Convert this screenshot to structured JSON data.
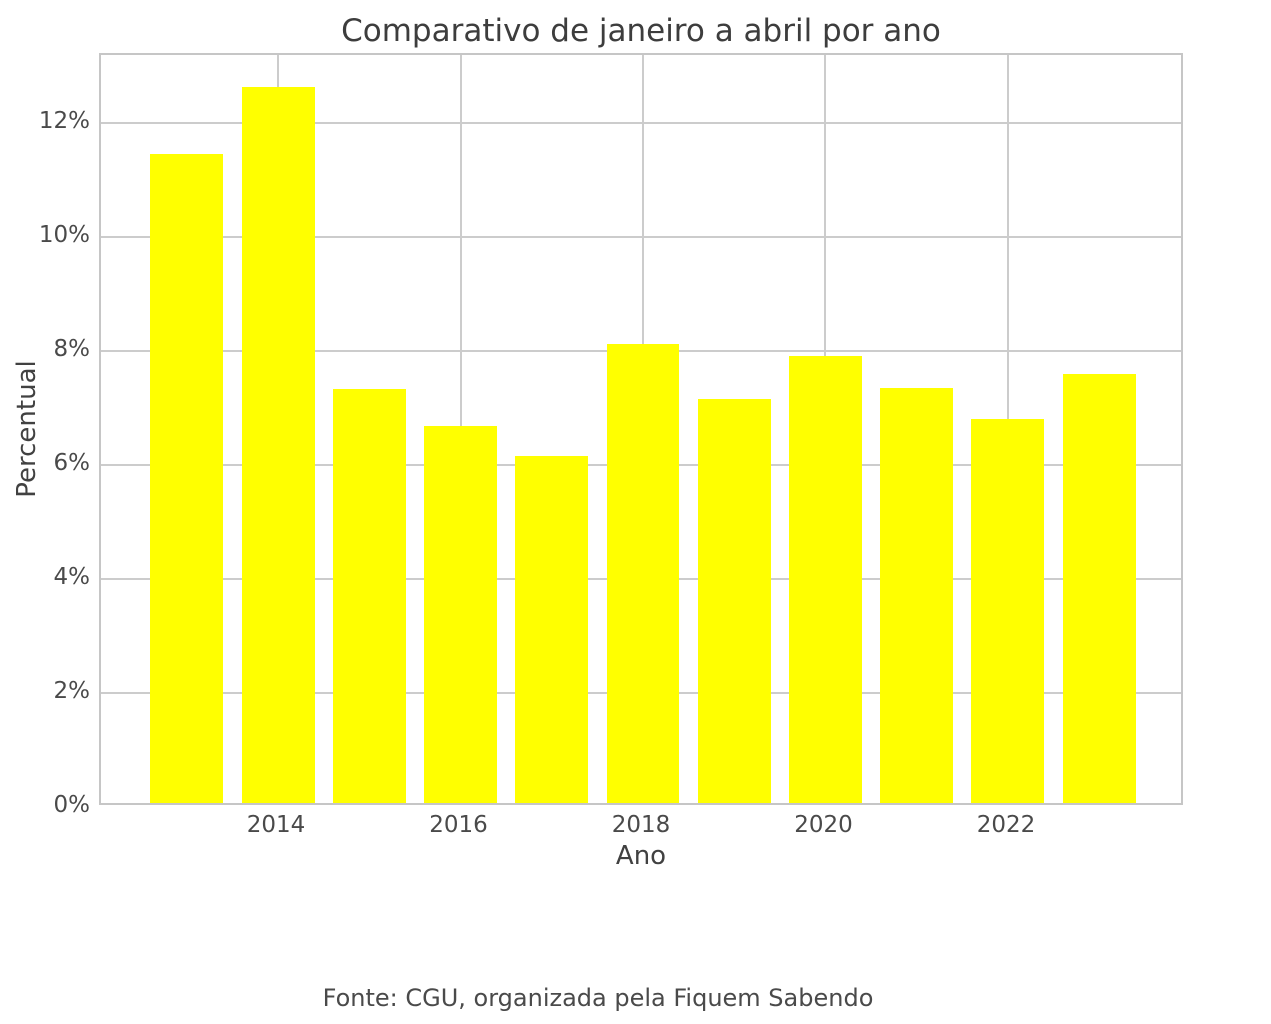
{
  "chart_data": {
    "type": "bar",
    "title": "Comparativo de janeiro a abril por ano",
    "xlabel": "Ano",
    "ylabel": "Percentual",
    "categories": [
      2013,
      2014,
      2015,
      2016,
      2017,
      2018,
      2019,
      2020,
      2021,
      2022,
      2023
    ],
    "values": [
      11.42,
      12.6,
      7.3,
      6.65,
      6.12,
      8.1,
      7.13,
      7.88,
      7.32,
      6.78,
      7.56
    ],
    "yticks": [
      0,
      2,
      4,
      6,
      8,
      10,
      12
    ],
    "ytick_suffix": "%",
    "xticks": [
      2014,
      2016,
      2018,
      2020,
      2022
    ],
    "ylim": [
      0,
      13.2
    ],
    "xlim": [
      2012.06,
      2023.94
    ],
    "bar_color": "#ffff00",
    "grid": true,
    "legend": false,
    "source_note": "Fonte: CGU, organizada pela Fiquem Sabendo"
  },
  "colors": {
    "bar": "#ffff00",
    "gridline": "#cccccc",
    "plot_border": "#c6c6c6",
    "title_text": "#3d3d3d",
    "tick_text": "#4a4a4a"
  }
}
